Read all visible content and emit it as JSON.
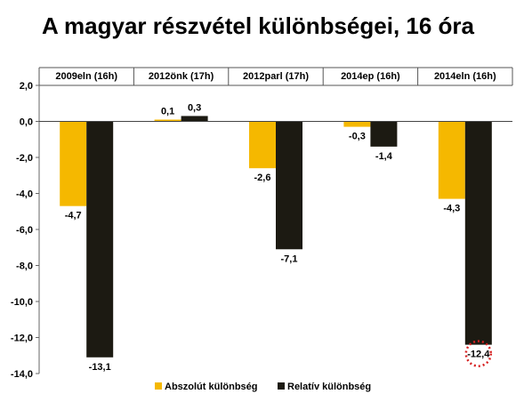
{
  "chart_data": {
    "type": "bar",
    "title": "A magyar részvétel különbségei, 16 óra",
    "categories": [
      "2009eln (16h)",
      "2012önk (17h)",
      "2012parl (17h)",
      "2014ep (16h)",
      "2014eln (16h)"
    ],
    "series": [
      {
        "name": "Abszolút különbség",
        "color": "#F5B800",
        "values": [
          -4.7,
          0.1,
          -2.6,
          -0.3,
          -4.3
        ],
        "labels": [
          "-4,7",
          "0,1",
          "-2,6",
          "-0,3",
          "-4,3"
        ]
      },
      {
        "name": "Relatív különbség",
        "color": "#1C1A12",
        "values": [
          -13.1,
          0.3,
          -7.1,
          -1.4,
          -12.4
        ],
        "labels": [
          "-13,1",
          "0,3",
          "-7,1",
          "-1,4",
          "-12,4"
        ]
      }
    ],
    "ylim": [
      -14,
      2
    ],
    "yticks": [
      2,
      0,
      -2,
      -4,
      -6,
      -8,
      -10,
      -12,
      -14
    ],
    "ytick_labels": [
      "2,0",
      "0,0",
      "-2,0",
      "-4,0",
      "-6,0",
      "-8,0",
      "-10,0",
      "-12,0",
      "-14,0"
    ],
    "highlight": {
      "series": 1,
      "index": 4,
      "color": "#D62020"
    },
    "category_labels_position": "top",
    "legend": "bottom",
    "grid": false
  }
}
